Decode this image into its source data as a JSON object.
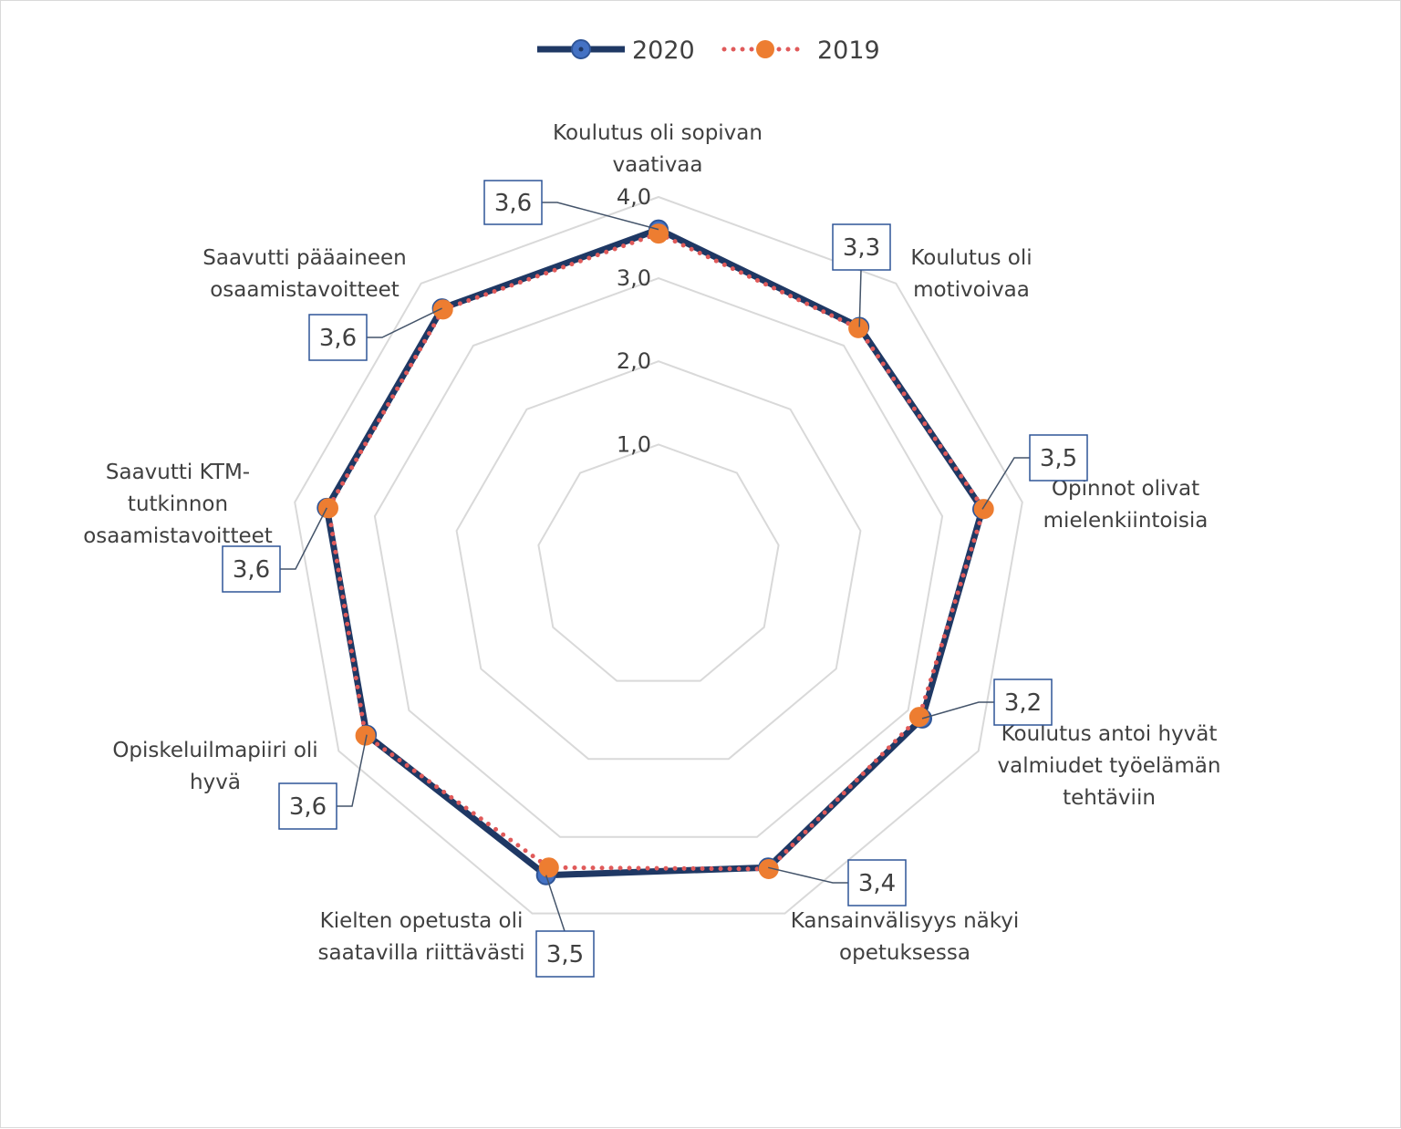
{
  "chart_data": {
    "type": "radar",
    "title": "",
    "categories": [
      "Koulutus oli sopivan vaativaa",
      "Koulutus oli motivoivaa",
      "Opinnot olivat mielenkiintoisia",
      "Koulutus antoi hyvät valmiudet työelämän tehtäviin",
      "Kansainvälisyys näkyi opetuksessa",
      "Kielten opetusta oli saatavilla riittävästi",
      "Opiskeluilmapiiri oli hyvä",
      "Saavutti KTM-tutkinnon osaamistavoitteet",
      "Saavutti pääaineen osaamistavoitteet"
    ],
    "category_lines": [
      [
        "Koulutus oli sopivan",
        "vaativaa"
      ],
      [
        "Koulutus oli",
        "motivoivaa"
      ],
      [
        "Opinnot olivat",
        "mielenkiintoisia"
      ],
      [
        "Koulutus antoi hyvät",
        "valmiudet työelämän",
        "tehtäviin"
      ],
      [
        "Kansainvälisyys näkyi",
        "opetuksessa"
      ],
      [
        "Kielten opetusta oli",
        "saatavilla riittävästi"
      ],
      [
        "Opiskeluilmapiiri oli",
        "hyvä"
      ],
      [
        "Saavutti KTM-",
        "tutkinnon",
        "osaamistavoitteet"
      ],
      [
        "Saavutti pääaineen",
        "osaamistavoitteet"
      ]
    ],
    "series": [
      {
        "name": "2020",
        "values": [
          3.6,
          3.3,
          3.5,
          3.2,
          3.4,
          3.5,
          3.6,
          3.6,
          3.6
        ],
        "line_color": "#1f3864",
        "marker_color": "#4472c4",
        "style": "solid"
      },
      {
        "name": "2019",
        "values": [
          3.55,
          3.28,
          3.52,
          3.16,
          3.42,
          3.4,
          3.62,
          3.58,
          3.58
        ],
        "line_color": "#e05a5a",
        "marker_color": "#ed7d31",
        "style": "dotted"
      }
    ],
    "data_labels": [
      "3,6",
      "3,3",
      "3,5",
      "3,2",
      "3,4",
      "3,5",
      "3,6",
      "3,6",
      "3,6"
    ],
    "rmin": 1.0,
    "rmax": 4.0,
    "ticks": [
      1.0,
      2.0,
      3.0,
      4.0
    ],
    "tick_labels": [
      "1,0",
      "2,0",
      "3,0",
      "4,0"
    ],
    "gridlines": true,
    "legend_position": "top"
  }
}
